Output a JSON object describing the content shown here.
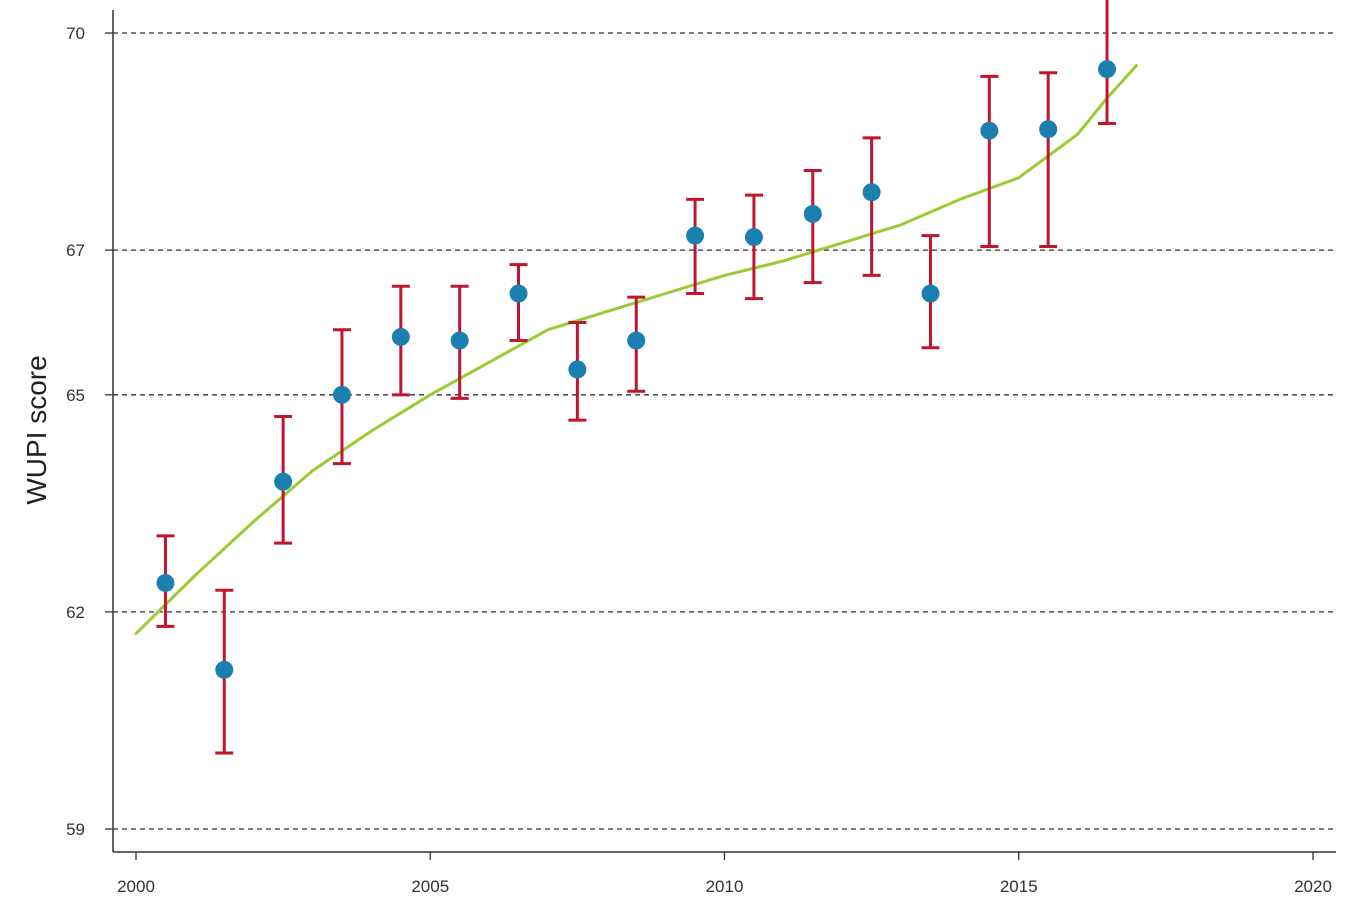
{
  "chart_data": {
    "type": "scatter",
    "title": "",
    "xlabel": "",
    "ylabel": "WUPI score",
    "xlim": [
      2000,
      2020
    ],
    "ylim": [
      59,
      70
    ],
    "xticks": [
      2000,
      2005,
      2010,
      2015,
      2020
    ],
    "yticks": [
      59,
      62,
      65,
      67,
      70
    ],
    "ytick_labels": [
      "59",
      "62",
      "65",
      "67",
      "70"
    ],
    "grid": "horizontal dashed at y ticks",
    "series": [
      {
        "type": "scatter-errorbar",
        "x": [
          2000.5,
          2001.5,
          2002.5,
          2003.5,
          2004.5,
          2005.5,
          2006.5,
          2007.5,
          2008.5,
          2009.5,
          2010.5,
          2011.5,
          2012.5,
          2013.5,
          2014.5,
          2015.5,
          2016.5
        ],
        "y": [
          62.4,
          61.2,
          63.8,
          65.0,
          65.8,
          65.75,
          66.4,
          65.35,
          65.75,
          67.2,
          67.18,
          67.5,
          67.8,
          66.4,
          68.65,
          68.67,
          69.5
        ],
        "err_low": [
          61.8,
          60.05,
          62.95,
          64.05,
          65.0,
          64.95,
          65.75,
          64.65,
          65.05,
          66.4,
          66.33,
          66.55,
          66.65,
          65.65,
          67.05,
          67.05,
          68.75
        ],
        "err_high": [
          63.05,
          62.3,
          64.7,
          65.9,
          66.5,
          66.5,
          66.8,
          66.0,
          66.35,
          67.7,
          67.76,
          68.1,
          68.55,
          67.2,
          69.4,
          69.45,
          70.65
        ]
      },
      {
        "type": "line",
        "x": [
          2000,
          2001,
          2002,
          2003,
          2004,
          2005,
          2006,
          2007,
          2008,
          2009,
          2010,
          2011,
          2012,
          2013,
          2014,
          2015,
          2016,
          2016.5,
          2017
        ],
        "y": [
          61.7,
          62.5,
          63.25,
          63.95,
          64.5,
          65.0,
          65.45,
          65.9,
          66.15,
          66.4,
          66.65,
          66.85,
          67.1,
          67.35,
          67.7,
          68.0,
          68.6,
          69.1,
          69.55
        ]
      }
    ],
    "colors": {
      "points": "#1b80b0",
      "error_bars": "#c0152f",
      "trend_line": "#99cc33",
      "grid": "#333333",
      "axis": "#333333"
    }
  }
}
